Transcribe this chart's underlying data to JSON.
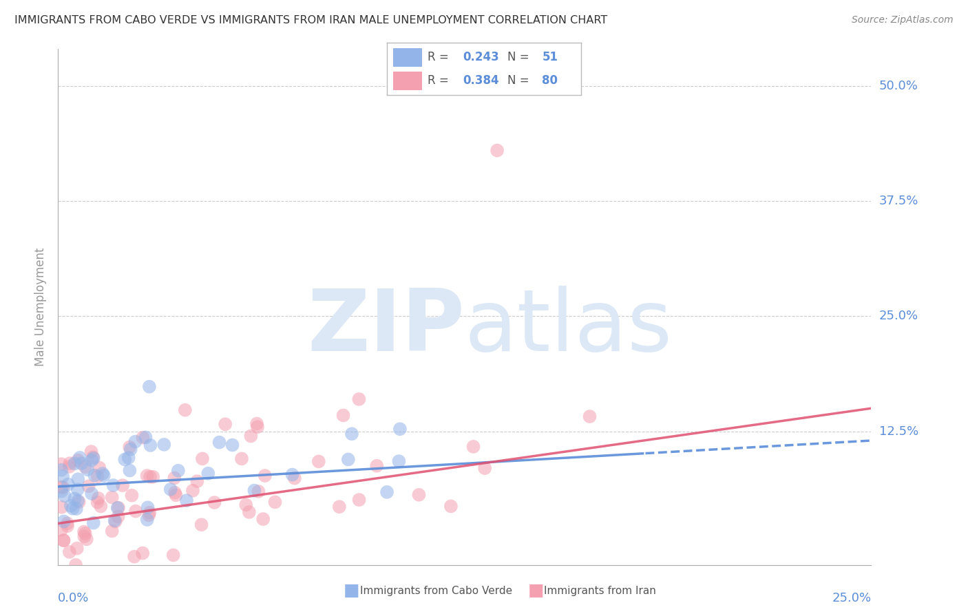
{
  "title": "IMMIGRANTS FROM CABO VERDE VS IMMIGRANTS FROM IRAN MALE UNEMPLOYMENT CORRELATION CHART",
  "source": "Source: ZipAtlas.com",
  "ylabel": "Male Unemployment",
  "ytick_values": [
    0.125,
    0.25,
    0.375,
    0.5
  ],
  "ytick_labels": [
    "12.5%",
    "25.0%",
    "37.5%",
    "50.0%"
  ],
  "xlim": [
    0.0,
    0.25
  ],
  "ylim": [
    -0.02,
    0.54
  ],
  "color_cabo": "#92b4e8",
  "color_iran": "#f4a0b0",
  "color_text": "#5b8dd9",
  "watermark_zip": "ZIP",
  "watermark_atlas": "atlas"
}
